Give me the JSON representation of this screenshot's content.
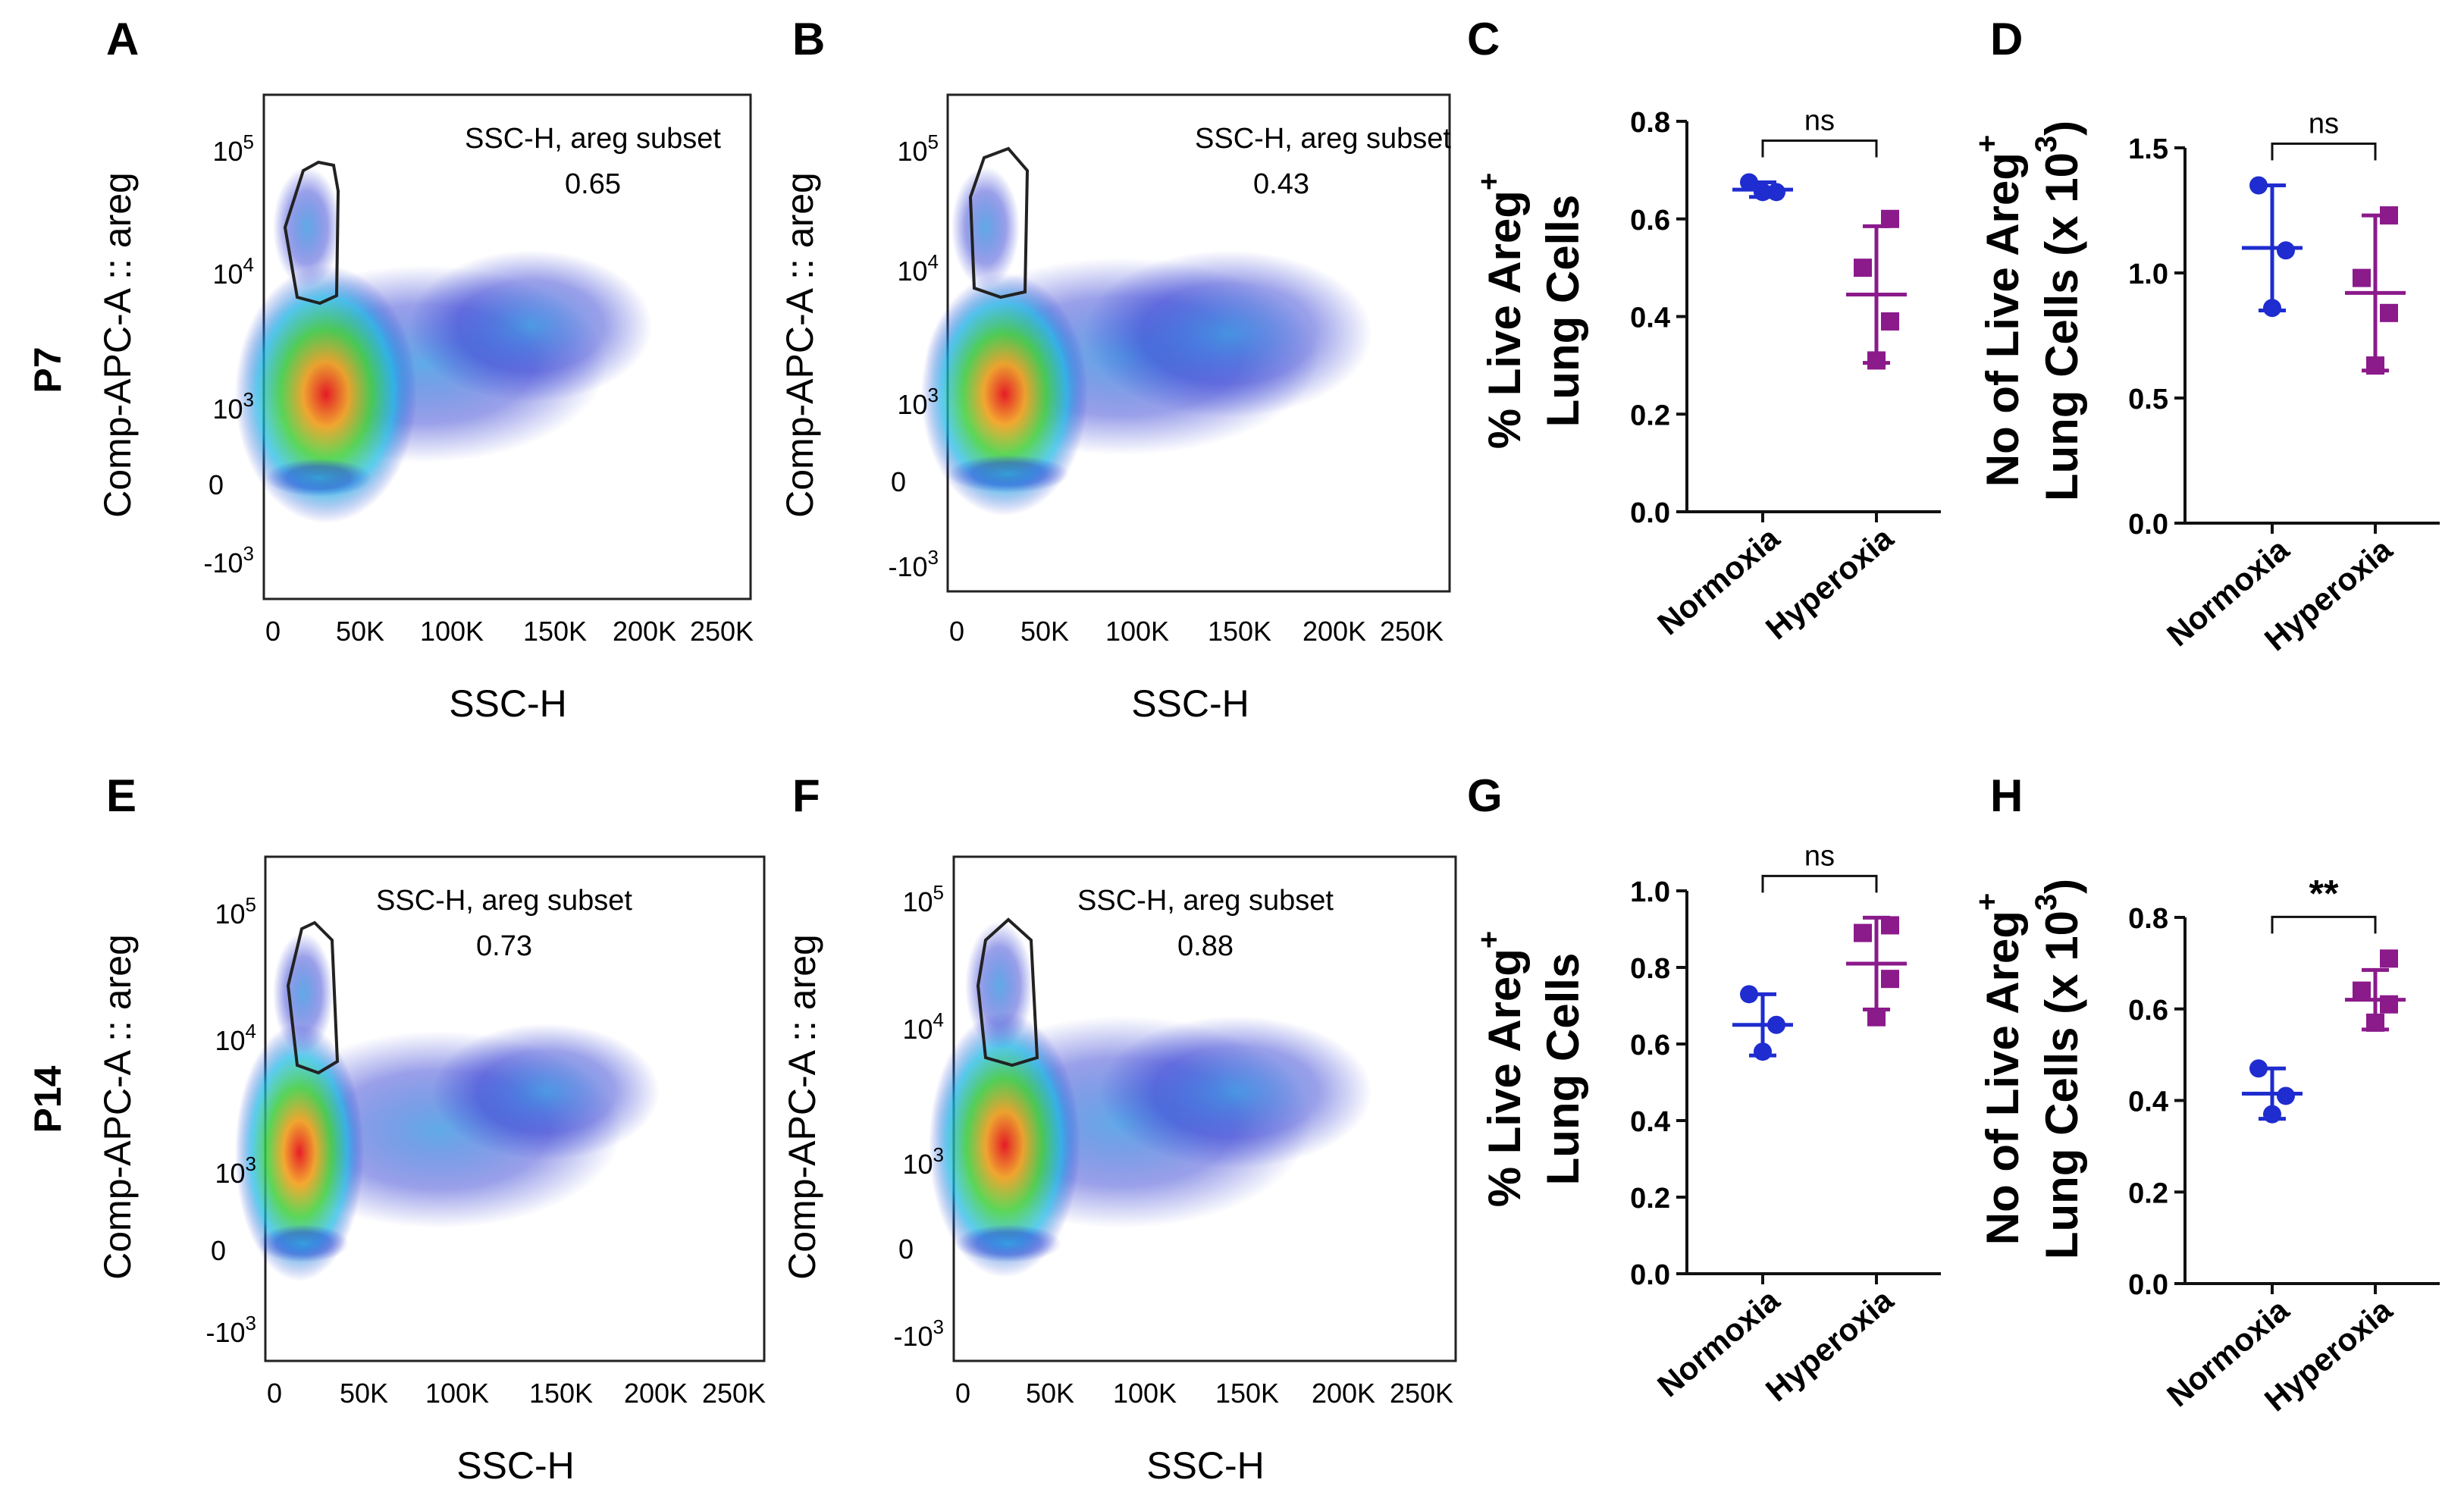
{
  "rows": [
    {
      "label": "P7"
    },
    {
      "label": "P14"
    }
  ],
  "colors": {
    "normoxia": "#1f2ccf",
    "hyperoxia": "#8b1a8b"
  },
  "flow_panels": [
    {
      "panel": "A",
      "gate_label": "SSC-H, areg subset",
      "gate_value": "0.65",
      "xlabel": "SSC-H",
      "ylabel": "Comp-APC-A :: areg",
      "xticks": [
        "0",
        "50K",
        "100K",
        "150K",
        "200K",
        "250K"
      ],
      "yticks": [
        {
          "base": "10",
          "exp": "5"
        },
        {
          "base": "10",
          "exp": "4"
        },
        {
          "base": "10",
          "exp": "3"
        },
        {
          "base": "0",
          "exp": ""
        },
        {
          "base": "-10",
          "exp": "3"
        }
      ]
    },
    {
      "panel": "B",
      "gate_label": "SSC-H, areg subset",
      "gate_value": "0.43",
      "xlabel": "SSC-H",
      "ylabel": "Comp-APC-A :: areg",
      "xticks": [
        "0",
        "50K",
        "100K",
        "150K",
        "200K",
        "250K"
      ],
      "yticks": [
        {
          "base": "10",
          "exp": "5"
        },
        {
          "base": "10",
          "exp": "4"
        },
        {
          "base": "10",
          "exp": "3"
        },
        {
          "base": "0",
          "exp": ""
        },
        {
          "base": "-10",
          "exp": "3"
        }
      ]
    },
    {
      "panel": "E",
      "gate_label": "SSC-H, areg subset",
      "gate_value": "0.73",
      "xlabel": "SSC-H",
      "ylabel": "Comp-APC-A :: areg",
      "xticks": [
        "0",
        "50K",
        "100K",
        "150K",
        "200K",
        "250K"
      ],
      "yticks": [
        {
          "base": "10",
          "exp": "5"
        },
        {
          "base": "10",
          "exp": "4"
        },
        {
          "base": "10",
          "exp": "3"
        },
        {
          "base": "0",
          "exp": ""
        },
        {
          "base": "-10",
          "exp": "3"
        }
      ]
    },
    {
      "panel": "F",
      "gate_label": "SSC-H, areg subset",
      "gate_value": "0.88",
      "xlabel": "SSC-H",
      "ylabel": "Comp-APC-A :: areg",
      "xticks": [
        "0",
        "50K",
        "100K",
        "150K",
        "200K",
        "250K"
      ],
      "yticks": [
        {
          "base": "10",
          "exp": "5"
        },
        {
          "base": "10",
          "exp": "4"
        },
        {
          "base": "10",
          "exp": "3"
        },
        {
          "base": "0",
          "exp": ""
        },
        {
          "base": "-10",
          "exp": "3"
        }
      ]
    }
  ],
  "chart_data": [
    {
      "panel": "C",
      "type": "scatter",
      "ylabel_line1": "% Live Areg",
      "ylabel_sup": "+",
      "ylabel_line2": "Lung Cells",
      "categories": [
        "Normoxia",
        "Hyperoxia"
      ],
      "ylim": [
        0,
        0.8
      ],
      "yticks": [
        "0.0",
        "0.2",
        "0.4",
        "0.6",
        "0.8"
      ],
      "significance": "ns",
      "series": [
        {
          "name": "Normoxia",
          "mean": 0.66,
          "error": 0.015,
          "points": [
            0.675,
            0.655,
            0.655
          ]
        },
        {
          "name": "Hyperoxia",
          "mean": 0.445,
          "error": 0.14,
          "points": [
            0.6,
            0.5,
            0.39,
            0.31
          ]
        }
      ]
    },
    {
      "panel": "D",
      "type": "scatter",
      "ylabel_line1": "No of Live Areg",
      "ylabel_sup": "+",
      "ylabel_line2": "Lung Cells (x 10",
      "ylabel_exp": "3",
      "ylabel_close": ")",
      "categories": [
        "Normoxia",
        "Hyperoxia"
      ],
      "ylim": [
        0,
        1.5
      ],
      "yticks": [
        "0.0",
        "0.5",
        "1.0",
        "1.5"
      ],
      "significance": "ns",
      "series": [
        {
          "name": "Normoxia",
          "mean": 1.1,
          "error": 0.25,
          "points": [
            1.35,
            1.09,
            0.86
          ]
        },
        {
          "name": "Hyperoxia",
          "mean": 0.92,
          "error": 0.31,
          "points": [
            1.23,
            0.98,
            0.84,
            0.63
          ]
        }
      ]
    },
    {
      "panel": "G",
      "type": "scatter",
      "ylabel_line1": "% Live Areg",
      "ylabel_sup": "+",
      "ylabel_line2": "Lung Cells",
      "categories": [
        "Normoxia",
        "Hyperoxia"
      ],
      "ylim": [
        0,
        1.0
      ],
      "yticks": [
        "0.0",
        "0.2",
        "0.4",
        "0.6",
        "0.8",
        "1.0"
      ],
      "significance": "ns",
      "series": [
        {
          "name": "Normoxia",
          "mean": 0.65,
          "error": 0.08,
          "points": [
            0.73,
            0.65,
            0.58
          ]
        },
        {
          "name": "Hyperoxia",
          "mean": 0.81,
          "error": 0.12,
          "points": [
            0.91,
            0.89,
            0.77,
            0.67
          ]
        }
      ]
    },
    {
      "panel": "H",
      "type": "scatter",
      "ylabel_line1": "No of Live Areg",
      "ylabel_sup": "+",
      "ylabel_line2": "Lung Cells (x 10",
      "ylabel_exp": "3",
      "ylabel_close": ")",
      "categories": [
        "Normoxia",
        "Hyperoxia"
      ],
      "ylim": [
        0,
        0.8
      ],
      "yticks": [
        "0.0",
        "0.2",
        "0.4",
        "0.6",
        "0.8"
      ],
      "significance": "**",
      "series": [
        {
          "name": "Normoxia",
          "mean": 0.415,
          "error": 0.055,
          "points": [
            0.47,
            0.41,
            0.37
          ]
        },
        {
          "name": "Hyperoxia",
          "mean": 0.62,
          "error": 0.065,
          "points": [
            0.71,
            0.64,
            0.61,
            0.57
          ]
        }
      ]
    }
  ]
}
